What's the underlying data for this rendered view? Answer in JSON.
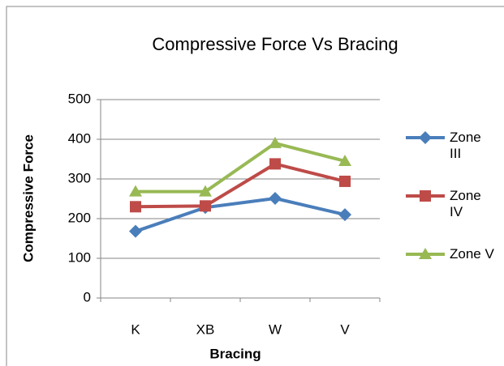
{
  "chart_data": {
    "type": "line",
    "title": "Compressive Force Vs Bracing",
    "x_label": "Bracing",
    "y_label": "Compressive Force",
    "categories": [
      "K",
      "XB",
      "W",
      "V"
    ],
    "series": [
      {
        "name": "Zone III",
        "color": "#4a7ebb",
        "marker": "diamond",
        "values": [
          168,
          228,
          251,
          210
        ]
      },
      {
        "name": "Zone IV",
        "color": "#be4b48",
        "marker": "square",
        "values": [
          230,
          232,
          338,
          294
        ]
      },
      {
        "name": "Zone V",
        "color": "#98b954",
        "marker": "triangle",
        "values": [
          268,
          268,
          390,
          345
        ]
      }
    ],
    "ylim": [
      0,
      500
    ],
    "yticks": [
      0,
      100,
      200,
      300,
      400,
      500
    ],
    "grid": true,
    "legend": "right"
  }
}
